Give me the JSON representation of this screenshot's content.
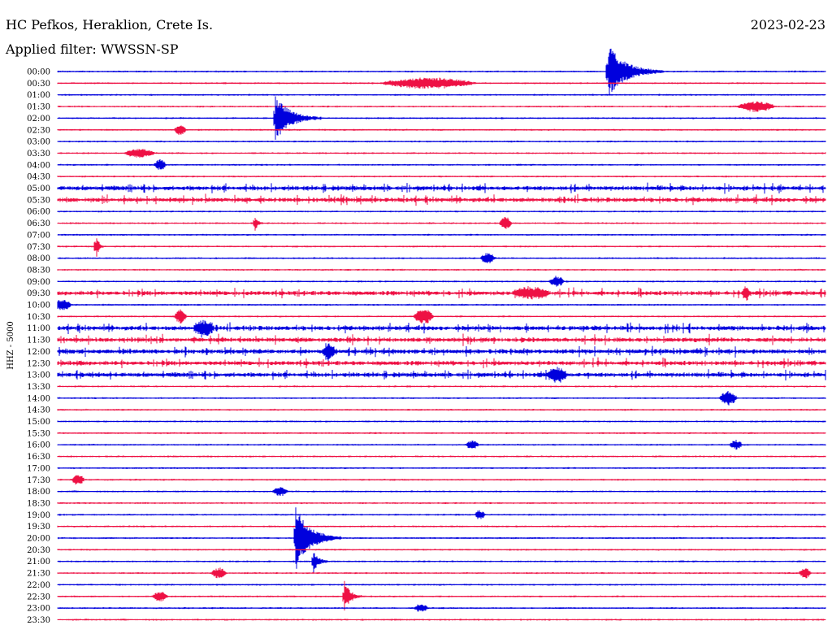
{
  "header": {
    "station": "HC Pefkos, Heraklion, Crete Is.",
    "date": "2023-02-23",
    "filter": "Applied filter: WWSSN-SP"
  },
  "chart_data": {
    "type": "line",
    "subtype": "helicorder",
    "ylabel": "HHZ - 5000",
    "trace_colors": [
      "#0000dd",
      "#ee1144"
    ],
    "row_labels": [
      "00:00",
      "00:30",
      "01:00",
      "01:30",
      "02:00",
      "02:30",
      "03:00",
      "03:30",
      "04:00",
      "04:30",
      "05:00",
      "05:30",
      "06:00",
      "06:30",
      "07:00",
      "07:30",
      "08:00",
      "08:30",
      "09:00",
      "09:30",
      "10:00",
      "10:30",
      "11:00",
      "11:30",
      "12:00",
      "12:30",
      "13:00",
      "13:30",
      "14:00",
      "14:30",
      "15:00",
      "15:30",
      "16:00",
      "16:30",
      "17:00",
      "17:30",
      "18:00",
      "18:30",
      "19:00",
      "19:30",
      "20:00",
      "20:30",
      "21:00",
      "21:30",
      "22:00",
      "22:30",
      "23:00",
      "23:30"
    ],
    "rows_minutes": 30,
    "events": [
      {
        "row": 0,
        "minute": 21.5,
        "amplitude": 34,
        "duration_min": 2.2,
        "type": "quake"
      },
      {
        "row": 1,
        "minute": 14.5,
        "amplitude": 6,
        "duration_min": 3.8,
        "type": "burst"
      },
      {
        "row": 3,
        "minute": 27.3,
        "amplitude": 6,
        "duration_min": 1.5,
        "type": "burst"
      },
      {
        "row": 4,
        "minute": 8.5,
        "amplitude": 30,
        "duration_min": 1.8,
        "type": "quake"
      },
      {
        "row": 5,
        "minute": 4.8,
        "amplitude": 6,
        "duration_min": 0.5,
        "type": "burst"
      },
      {
        "row": 7,
        "minute": 3.2,
        "amplitude": 5,
        "duration_min": 1.2,
        "type": "burst"
      },
      {
        "row": 8,
        "minute": 4.0,
        "amplitude": 6,
        "duration_min": 0.5,
        "type": "burst"
      },
      {
        "row": 13,
        "minute": 7.7,
        "amplitude": 12,
        "duration_min": 0.3,
        "type": "quake"
      },
      {
        "row": 13,
        "minute": 17.5,
        "amplitude": 7,
        "duration_min": 0.5,
        "type": "burst"
      },
      {
        "row": 15,
        "minute": 1.5,
        "amplitude": 18,
        "duration_min": 0.3,
        "type": "quake"
      },
      {
        "row": 16,
        "minute": 16.8,
        "amplitude": 6,
        "duration_min": 0.6,
        "type": "burst"
      },
      {
        "row": 18,
        "minute": 19.5,
        "amplitude": 6,
        "duration_min": 0.6,
        "type": "burst"
      },
      {
        "row": 19,
        "minute": 18.5,
        "amplitude": 6,
        "duration_min": 1.5,
        "type": "burst"
      },
      {
        "row": 19,
        "minute": 26.9,
        "amplitude": 8,
        "duration_min": 0.3,
        "type": "burst"
      },
      {
        "row": 20,
        "minute": 0.2,
        "amplitude": 6,
        "duration_min": 0.7,
        "type": "burst"
      },
      {
        "row": 21,
        "minute": 4.8,
        "amplitude": 8,
        "duration_min": 0.5,
        "type": "burst"
      },
      {
        "row": 21,
        "minute": 14.3,
        "amplitude": 9,
        "duration_min": 0.8,
        "type": "burst"
      },
      {
        "row": 22,
        "minute": 5.7,
        "amplitude": 9,
        "duration_min": 0.8,
        "type": "burst"
      },
      {
        "row": 24,
        "minute": 10.6,
        "amplitude": 9,
        "duration_min": 0.5,
        "type": "burst"
      },
      {
        "row": 26,
        "minute": 19.5,
        "amplitude": 9,
        "duration_min": 0.8,
        "type": "burst"
      },
      {
        "row": 28,
        "minute": 26.2,
        "amplitude": 8,
        "duration_min": 0.7,
        "type": "burst"
      },
      {
        "row": 32,
        "minute": 16.2,
        "amplitude": 5,
        "duration_min": 0.5,
        "type": "burst"
      },
      {
        "row": 32,
        "minute": 26.5,
        "amplitude": 5,
        "duration_min": 0.5,
        "type": "burst"
      },
      {
        "row": 35,
        "minute": 0.8,
        "amplitude": 6,
        "duration_min": 0.5,
        "type": "burst"
      },
      {
        "row": 36,
        "minute": 8.7,
        "amplitude": 5,
        "duration_min": 0.6,
        "type": "burst"
      },
      {
        "row": 38,
        "minute": 16.5,
        "amplitude": 5,
        "duration_min": 0.4,
        "type": "burst"
      },
      {
        "row": 40,
        "minute": 9.3,
        "amplitude": 40,
        "duration_min": 1.8,
        "type": "quake"
      },
      {
        "row": 42,
        "minute": 10.0,
        "amplitude": 14,
        "duration_min": 0.6,
        "type": "quake"
      },
      {
        "row": 43,
        "minute": 6.3,
        "amplitude": 6,
        "duration_min": 0.6,
        "type": "burst"
      },
      {
        "row": 43,
        "minute": 29.2,
        "amplitude": 6,
        "duration_min": 0.5,
        "type": "burst"
      },
      {
        "row": 45,
        "minute": 4.0,
        "amplitude": 6,
        "duration_min": 0.6,
        "type": "burst"
      },
      {
        "row": 45,
        "minute": 11.2,
        "amplitude": 20,
        "duration_min": 0.7,
        "type": "quake"
      },
      {
        "row": 46,
        "minute": 14.2,
        "amplitude": 4,
        "duration_min": 0.6,
        "type": "burst"
      }
    ],
    "noisy_rows": [
      10,
      11,
      19,
      22,
      23,
      24,
      25,
      26
    ]
  }
}
